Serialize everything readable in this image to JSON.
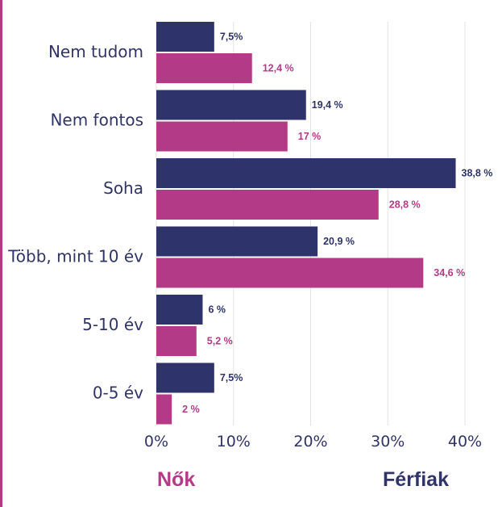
{
  "colors": {
    "men": "#2f336b",
    "women": "#b23a87",
    "grid": "#e3e3e3",
    "text": "#303466"
  },
  "chart_data": {
    "type": "bar",
    "orientation": "horizontal",
    "categories": [
      "Nem tudom",
      "Nem fontos",
      "Soha",
      "Több, mint 10 év",
      "5-10 év",
      "0-5 év"
    ],
    "series": [
      {
        "name": "Férfiak",
        "values": [
          7.5,
          19.4,
          38.8,
          20.9,
          6,
          7.5
        ],
        "labels": [
          "7,5%",
          "19,4 %",
          "38,8 %",
          "20,9 %",
          "6 %",
          "7,5%"
        ]
      },
      {
        "name": "Nők",
        "values": [
          12.4,
          17,
          28.8,
          34.6,
          5.2,
          2
        ],
        "labels": [
          "12,4 %",
          "17 %",
          "28,8 %",
          "34,6 %",
          "5,2 %",
          "2 %"
        ]
      }
    ],
    "xlim": [
      0,
      40
    ],
    "xticks": [
      0,
      10,
      20,
      30,
      40
    ],
    "xtick_labels": [
      "0%",
      "10%",
      "20%",
      "30%",
      "40%"
    ],
    "grid": true
  },
  "legend": {
    "women": "Nők",
    "men": "Férfiak"
  }
}
